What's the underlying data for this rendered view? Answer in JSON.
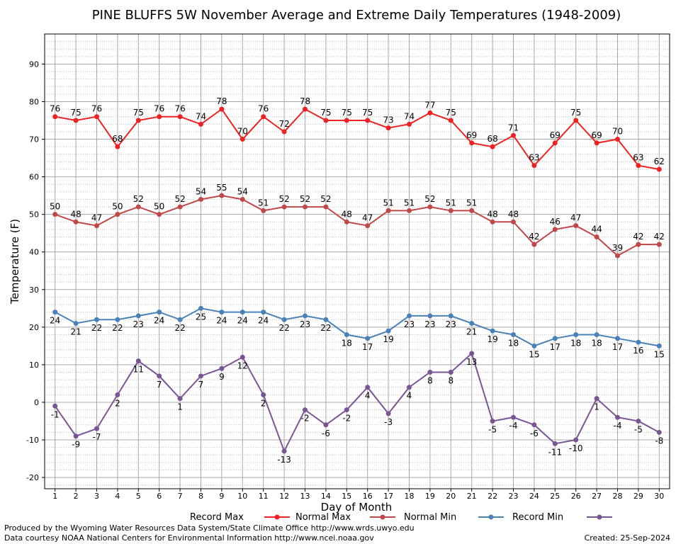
{
  "chart_data": {
    "type": "line",
    "title": "PINE BLUFFS 5W November Average and Extreme Daily Temperatures (1948-2009)",
    "xlabel": "Day of Month",
    "ylabel": "Temperature (F)",
    "xlim": [
      0.5,
      30.5
    ],
    "ylim": [
      -23,
      98
    ],
    "x_ticks": [
      "1",
      "2",
      "3",
      "4",
      "5",
      "6",
      "7",
      "8",
      "9",
      "10",
      "11",
      "12",
      "13",
      "14",
      "15",
      "16",
      "17",
      "18",
      "19",
      "20",
      "21",
      "22",
      "23",
      "24",
      "25",
      "26",
      "27",
      "28",
      "29",
      "30"
    ],
    "y_ticks": [
      "-20",
      "-10",
      "0",
      "10",
      "20",
      "30",
      "40",
      "50",
      "60",
      "70",
      "80",
      "90"
    ],
    "x": [
      1,
      2,
      3,
      4,
      5,
      6,
      7,
      8,
      9,
      10,
      11,
      12,
      13,
      14,
      15,
      16,
      17,
      18,
      19,
      20,
      21,
      22,
      23,
      24,
      25,
      26,
      27,
      28,
      29,
      30
    ],
    "grid": true,
    "series": [
      {
        "name": "Record Max",
        "color": "#ee2222",
        "values": [
          76,
          75,
          76,
          68,
          75,
          76,
          76,
          74,
          78,
          70,
          76,
          72,
          78,
          75,
          75,
          75,
          73,
          74,
          77,
          75,
          69,
          68,
          71,
          63,
          69,
          75,
          69,
          70,
          63,
          62
        ]
      },
      {
        "name": "Normal Max",
        "color": "#c04848",
        "values": [
          50,
          48,
          47,
          50,
          52,
          50,
          52,
          54,
          55,
          54,
          51,
          52,
          52,
          52,
          48,
          47,
          51,
          51,
          52,
          51,
          51,
          48,
          48,
          42,
          46,
          47,
          44,
          39,
          42,
          42
        ]
      },
      {
        "name": "Normal Min",
        "color": "#4a82b8",
        "values": [
          24,
          21,
          22,
          22,
          23,
          24,
          22,
          25,
          24,
          24,
          24,
          22,
          23,
          22,
          18,
          17,
          19,
          23,
          23,
          23,
          21,
          19,
          18,
          15,
          17,
          18,
          18,
          17,
          16,
          15
        ]
      },
      {
        "name": "Record Min",
        "color": "#7a5596",
        "values": [
          -1,
          -9,
          -7,
          2,
          11,
          7,
          1,
          7,
          9,
          12,
          2,
          -13,
          -2,
          -6,
          -2,
          4,
          -3,
          4,
          8,
          8,
          13,
          -5,
          -4,
          -6,
          -11,
          -10,
          1,
          -4,
          -5,
          -8
        ]
      }
    ],
    "legend_placement": "bottom"
  },
  "footer": {
    "line1": "Produced by the Wyoming Water Resources Data System/State Climate Office http://www.wrds.uwyo.edu",
    "line2": "Data courtesy NOAA National Centers for Environmental Information http://www.ncei.noaa.gov",
    "created": "Created:  25-Sep-2024"
  }
}
